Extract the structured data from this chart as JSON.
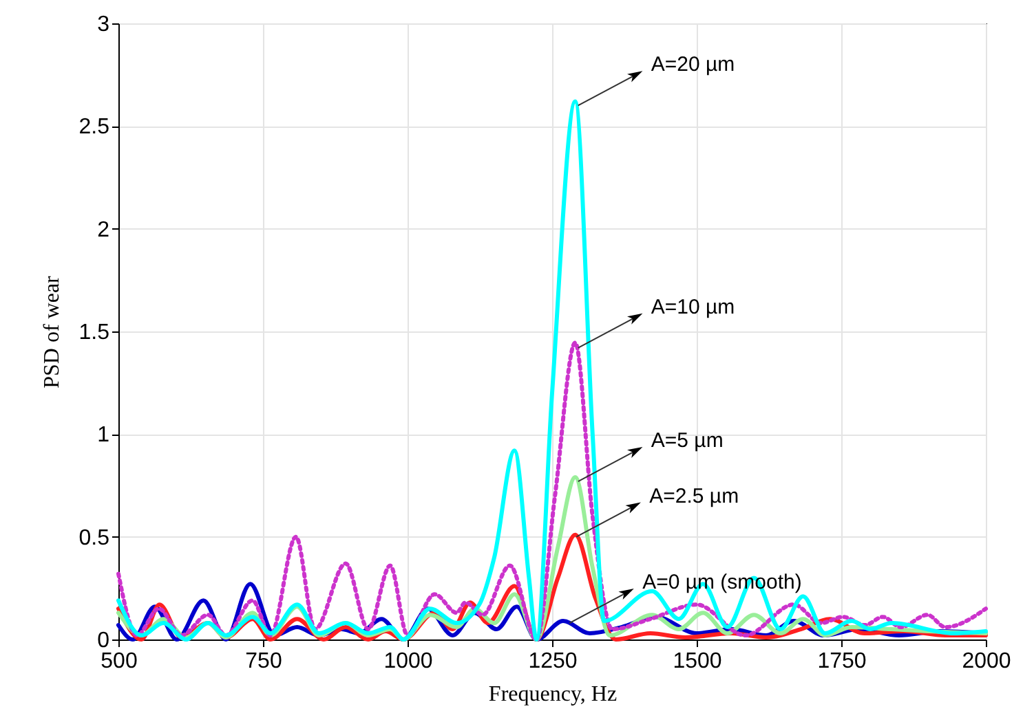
{
  "chart_data": {
    "type": "line",
    "xlabel": "Frequency, Hz",
    "ylabel": "PSD of wear",
    "xlim": [
      500,
      2000
    ],
    "xticks": [
      500,
      750,
      1000,
      1250,
      1500,
      1750,
      2000
    ],
    "ylim": [
      0,
      3
    ],
    "yticks": [
      0,
      0.5,
      1,
      1.5,
      2,
      2.5,
      3
    ],
    "grid": true,
    "series": [
      {
        "color": "#0000cc",
        "line_style": "solid",
        "x": [
          500,
          525,
          563,
          601,
          647,
          686,
          728,
          770,
          809,
          847,
          886,
          916,
          955,
          993,
          1035,
          1078,
          1116,
          1154,
          1189,
          1223,
          1269,
          1315,
          1370,
          1430,
          1500,
          1560,
          1620,
          1668,
          1720,
          1780,
          1850,
          1920,
          2000
        ],
        "values": [
          0.07,
          0.0,
          0.16,
          0.0,
          0.19,
          0.0,
          0.27,
          0.02,
          0.06,
          0.02,
          0.05,
          0.03,
          0.1,
          0.0,
          0.15,
          0.02,
          0.13,
          0.05,
          0.16,
          0.0,
          0.09,
          0.03,
          0.06,
          0.11,
          0.03,
          0.05,
          0.02,
          0.09,
          0.02,
          0.05,
          0.02,
          0.04,
          0.03
        ]
      },
      {
        "color": "#ff2020",
        "line_style": "solid",
        "x": [
          500,
          540,
          571,
          609,
          655,
          686,
          732,
          763,
          809,
          855,
          893,
          932,
          962,
          993,
          1047,
          1078,
          1108,
          1139,
          1185,
          1223,
          1260,
          1290,
          1325,
          1360,
          1420,
          1480,
          1560,
          1620,
          1680,
          1730,
          1790,
          1860,
          1930,
          2000
        ],
        "values": [
          0.15,
          0.0,
          0.17,
          0.01,
          0.08,
          0.01,
          0.1,
          0.0,
          0.1,
          0.0,
          0.06,
          0.0,
          0.04,
          0.0,
          0.13,
          0.05,
          0.18,
          0.08,
          0.26,
          0.0,
          0.3,
          0.51,
          0.2,
          0.0,
          0.03,
          0.01,
          0.03,
          0.01,
          0.05,
          0.1,
          0.03,
          0.04,
          0.02,
          0.02
        ]
      },
      {
        "color": "#99ee99",
        "line_style": "solid",
        "x": [
          500,
          540,
          578,
          617,
          655,
          686,
          732,
          763,
          809,
          847,
          893,
          932,
          970,
          993,
          1039,
          1085,
          1116,
          1150,
          1185,
          1223,
          1260,
          1290,
          1320,
          1350,
          1423,
          1469,
          1511,
          1553,
          1599,
          1645,
          1684,
          1722,
          1768,
          1837,
          1900,
          2000
        ],
        "values": [
          0.13,
          0.02,
          0.1,
          0.01,
          0.08,
          0.01,
          0.13,
          0.02,
          0.16,
          0.02,
          0.08,
          0.02,
          0.05,
          0.0,
          0.12,
          0.06,
          0.15,
          0.08,
          0.22,
          0.0,
          0.45,
          0.79,
          0.35,
          0.02,
          0.12,
          0.05,
          0.13,
          0.03,
          0.12,
          0.03,
          0.1,
          0.02,
          0.06,
          0.05,
          0.04,
          0.03
        ]
      },
      {
        "color": "#cc33cc",
        "line_style": "dotted",
        "x": [
          500,
          532,
          570,
          609,
          655,
          686,
          732,
          763,
          807,
          840,
          893,
          932,
          970,
          1000,
          1047,
          1085,
          1100,
          1130,
          1177,
          1223,
          1255,
          1290,
          1320,
          1354,
          1420,
          1500,
          1584,
          1668,
          1715,
          1753,
          1791,
          1822,
          1853,
          1899,
          1930,
          2000
        ],
        "values": [
          0.32,
          0.02,
          0.15,
          0.02,
          0.12,
          0.02,
          0.19,
          0.02,
          0.5,
          0.05,
          0.37,
          0.05,
          0.36,
          0.02,
          0.22,
          0.13,
          0.18,
          0.12,
          0.36,
          0.0,
          0.7,
          1.445,
          0.6,
          0.05,
          0.1,
          0.17,
          0.02,
          0.17,
          0.08,
          0.11,
          0.07,
          0.11,
          0.06,
          0.12,
          0.06,
          0.15
        ]
      },
      {
        "color": "#00ffff",
        "line_style": "solid",
        "x": [
          500,
          540,
          578,
          617,
          655,
          686,
          732,
          763,
          809,
          847,
          893,
          932,
          970,
          993,
          1039,
          1085,
          1124,
          1150,
          1185,
          1210,
          1223,
          1250,
          1290,
          1320,
          1340,
          1423,
          1469,
          1511,
          1553,
          1599,
          1645,
          1684,
          1722,
          1768,
          1800,
          1837,
          1945,
          2000
        ],
        "values": [
          0.19,
          0.02,
          0.08,
          0.0,
          0.08,
          0.02,
          0.11,
          0.03,
          0.17,
          0.03,
          0.08,
          0.03,
          0.06,
          0.0,
          0.15,
          0.08,
          0.17,
          0.4,
          0.92,
          0.3,
          0.0,
          1.2,
          2.62,
          1.0,
          0.09,
          0.235,
          0.1,
          0.27,
          0.06,
          0.3,
          0.05,
          0.21,
          0.03,
          0.09,
          0.05,
          0.08,
          0.03,
          0.04
        ]
      }
    ],
    "annotations": [
      {
        "text": "A=20 µm",
        "x": 1295,
        "y": 2.6
      },
      {
        "text": "A=10 µm",
        "x": 1295,
        "y": 1.42
      },
      {
        "text": "A=5 µm",
        "x": 1295,
        "y": 0.77
      },
      {
        "text": "A=2.5 µm",
        "x": 1292,
        "y": 0.5
      },
      {
        "text": "A=0 µm (smooth)",
        "x": 1280,
        "y": 0.08
      }
    ]
  }
}
